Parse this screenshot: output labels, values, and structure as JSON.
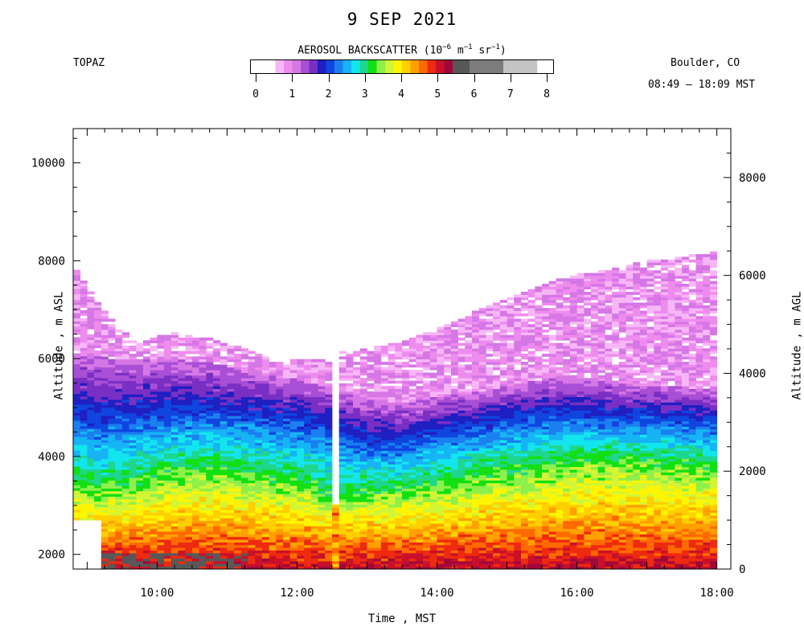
{
  "header": {
    "title": "9 SEP 2021",
    "instrument": "TOPAZ",
    "location": "Boulder, CO",
    "time_range": "08:49 – 18:09 MST"
  },
  "colorbar": {
    "title_prefix": "AEROSOL BACKSCATTER (10",
    "title_exp1": "−6",
    "title_mid": " m",
    "title_exp2": "−1",
    "title_mid2": " sr",
    "title_exp3": "−1",
    "title_suffix": ")",
    "range": [
      0,
      8
    ],
    "tick_labels": [
      "0",
      "1",
      "2",
      "3",
      "4",
      "5",
      "6",
      "7",
      "8"
    ],
    "segments": [
      {
        "from": 0.0,
        "to": 0.25,
        "color": "#ffffff"
      },
      {
        "from": 0.25,
        "to": 0.5,
        "color": "#f7b7f7"
      },
      {
        "from": 0.5,
        "to": 0.75,
        "color": "#ee8cee"
      },
      {
        "from": 0.75,
        "to": 1.0,
        "color": "#d677e6"
      },
      {
        "from": 1.0,
        "to": 1.25,
        "color": "#a94fd6"
      },
      {
        "from": 1.25,
        "to": 1.5,
        "color": "#7a2fc4"
      },
      {
        "from": 1.5,
        "to": 1.75,
        "color": "#1f1fc2"
      },
      {
        "from": 1.75,
        "to": 2.0,
        "color": "#1045e0"
      },
      {
        "from": 2.0,
        "to": 2.25,
        "color": "#1b7ff0"
      },
      {
        "from": 2.25,
        "to": 2.5,
        "color": "#16b4f5"
      },
      {
        "from": 2.5,
        "to": 2.75,
        "color": "#13e5ee"
      },
      {
        "from": 2.75,
        "to": 3.0,
        "color": "#1fd68c"
      },
      {
        "from": 3.0,
        "to": 3.25,
        "color": "#12e012"
      },
      {
        "from": 3.25,
        "to": 3.5,
        "color": "#8ef04a"
      },
      {
        "from": 3.5,
        "to": 3.75,
        "color": "#d2f535"
      },
      {
        "from": 3.75,
        "to": 4.0,
        "color": "#fff500"
      },
      {
        "from": 4.0,
        "to": 4.25,
        "color": "#ffcf00"
      },
      {
        "from": 4.25,
        "to": 4.5,
        "color": "#ffa000"
      },
      {
        "from": 4.5,
        "to": 4.75,
        "color": "#ff6a00"
      },
      {
        "from": 4.75,
        "to": 5.0,
        "color": "#ee2a10"
      },
      {
        "from": 5.0,
        "to": 5.25,
        "color": "#c8102a"
      },
      {
        "from": 5.25,
        "to": 5.5,
        "color": "#a0083a"
      },
      {
        "from": 5.5,
        "to": 6.0,
        "color": "#585858"
      },
      {
        "from": 6.0,
        "to": 7.0,
        "color": "#7c7c7c"
      },
      {
        "from": 7.0,
        "to": 8.0,
        "color": "#c4c4c4"
      }
    ]
  },
  "chart_data": {
    "type": "heatmap",
    "title": "9 SEP 2021",
    "xlabel": "Time , MST",
    "ylabel": "Altitude , m ASL",
    "y2label": "Altitude , m AGL",
    "xlim": [
      8.8,
      18.2
    ],
    "ylim": [
      1700,
      10700
    ],
    "y2lim": [
      0,
      9000
    ],
    "x_ticks": [
      10,
      12,
      14,
      16,
      18
    ],
    "x_tick_labels": [
      "10:00",
      "12:00",
      "14:00",
      "16:00",
      "18:00"
    ],
    "y_ticks": [
      2000,
      4000,
      6000,
      8000,
      10000
    ],
    "y_tick_labels": [
      "2000",
      "4000",
      "6000",
      "8000",
      "10000"
    ],
    "y2_ticks": [
      0,
      2000,
      4000,
      6000,
      8000
    ],
    "y2_tick_labels": [
      "0",
      "2000",
      "4000",
      "6000",
      "8000"
    ],
    "grid": false,
    "data_gap": [
      12.45,
      12.62
    ],
    "layer_profile": {
      "times": [
        8.8,
        9.2,
        9.7,
        10.2,
        10.7,
        11.2,
        11.7,
        12.2,
        12.45,
        12.62,
        13.0,
        13.5,
        14.0,
        14.5,
        15.0,
        15.5,
        16.0,
        16.5,
        17.0,
        17.5,
        17.95
      ],
      "top_of_signal": [
        7900,
        7000,
        6300,
        6500,
        6400,
        6200,
        5900,
        6000,
        5900,
        6100,
        6200,
        6300,
        6600,
        6900,
        7200,
        7500,
        7700,
        7800,
        8000,
        8050,
        8150
      ],
      "strong_layer_top": [
        6050,
        6000,
        5950,
        5950,
        5900,
        5750,
        5600,
        5500,
        5400,
        5300,
        5150,
        5050,
        5200,
        5300,
        5400,
        5550,
        5600,
        5500,
        5450,
        5400,
        5350
      ],
      "mid_layer_top": [
        4800,
        4650,
        4750,
        4850,
        4850,
        4750,
        4700,
        4600,
        4500,
        4400,
        4250,
        4200,
        4400,
        4550,
        4700,
        4800,
        4800,
        4750,
        4750,
        4700,
        4650
      ],
      "mixed_layer_top": [
        3400,
        3300,
        3400,
        3600,
        3700,
        3600,
        3500,
        3400,
        3100,
        3100,
        3250,
        3300,
        3400,
        3550,
        3650,
        3750,
        3850,
        3900,
        3850,
        3800,
        3750
      ]
    }
  }
}
